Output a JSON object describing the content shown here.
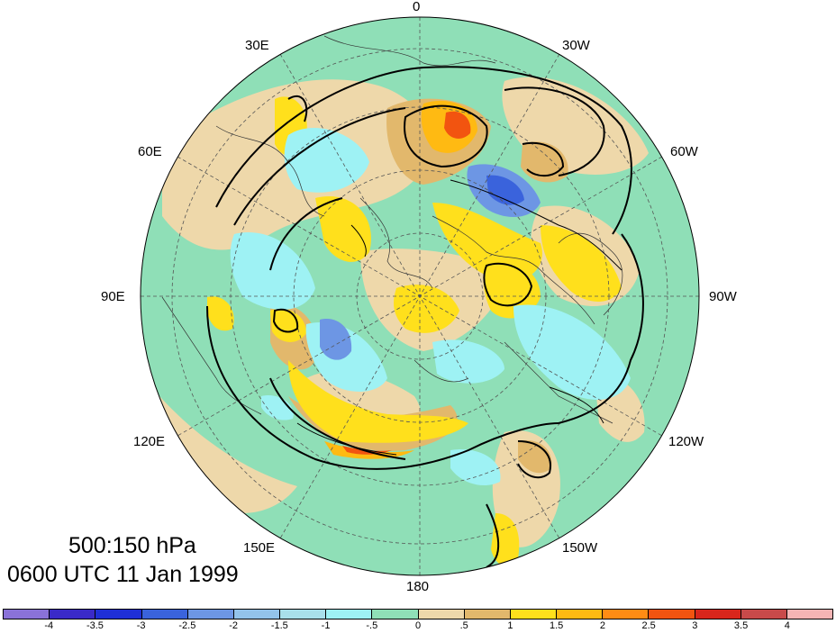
{
  "title": {
    "levels": "500:150 hPa",
    "datetime": "0600 UTC 11 Jan 1999"
  },
  "longitude_labels": [
    "0",
    "30W",
    "60W",
    "90W",
    "120W",
    "150W",
    "180",
    "150E",
    "120E",
    "90E",
    "60E",
    "30E"
  ],
  "colorbar": {
    "labels": [
      "-4",
      "-3.5",
      "-3",
      "-2.5",
      "-2",
      "-1.5",
      "-1",
      "-.5",
      "0",
      ".5",
      "1",
      "1.5",
      "2",
      "2.5",
      "3",
      "3.5",
      "4"
    ],
    "colors": [
      "#8a72d8",
      "#3a2ac8",
      "#1f2fd6",
      "#3a63dc",
      "#6d96e4",
      "#93c3ea",
      "#a9e0ea",
      "#9ef2f4",
      "#8fdfb7",
      "#eed8aa",
      "#e2b86c",
      "#ffe01c",
      "#ffba12",
      "#ff8c14",
      "#f25410",
      "#d8261c",
      "#c84a4a",
      "#f5b4b4"
    ]
  },
  "map": {
    "projection": "north-polar-stereographic",
    "ocean_background": "#8fdfb7",
    "field_colors": {
      "neg_light": "#9ef2f4",
      "neg_mid": "#6d96e4",
      "neg_strong": "#3a63dc",
      "pos_weak": "#eed8aa",
      "pos_light": "#e2b86c",
      "pos_mid": "#ffe01c",
      "pos_strong": "#ffba12",
      "pos_max": "#f25410"
    }
  }
}
